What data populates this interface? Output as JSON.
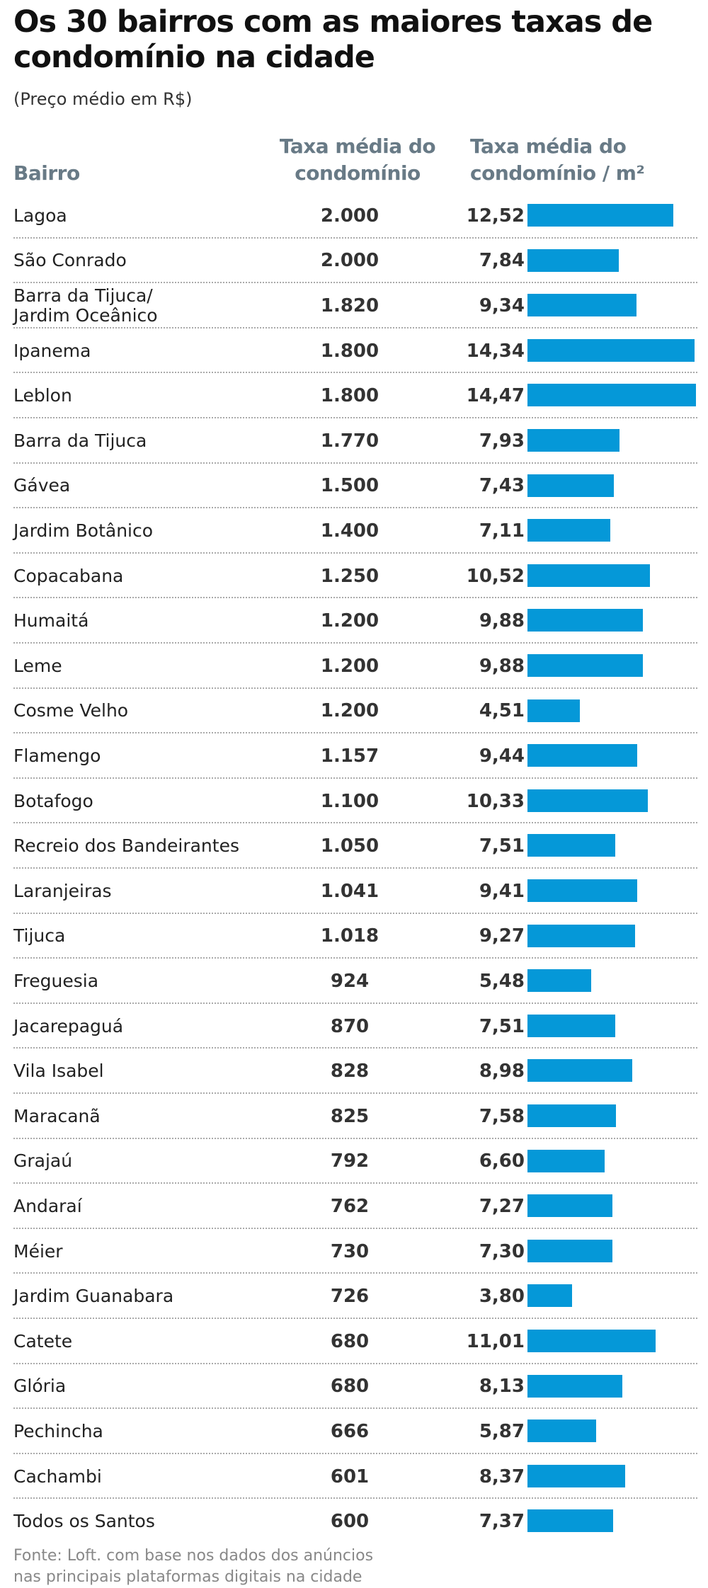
{
  "title": "Os 30 bairros com as maiores taxas de condomínio na cidade",
  "subtitle": "(Preço médio em R$)",
  "headers": {
    "bairro": "Bairro",
    "taxa": "Taxa média do condomínio",
    "taxa_m2": "Taxa média do condomínio / m²"
  },
  "source": "Fonte: Loft. com base nos dados dos anúncios nas principais plataformas digitais na cidade",
  "colors": {
    "bar": "#0598d8",
    "header": "#687a86"
  },
  "chart_data": {
    "type": "table",
    "bar_column": "Taxa média do condomínio / m²",
    "rows": [
      {
        "bairro": "Lagoa",
        "taxa": "2.000",
        "taxa_m2": "12,52",
        "m2": 12.52
      },
      {
        "bairro": "São Conrado",
        "taxa": "2.000",
        "taxa_m2": "7,84",
        "m2": 7.84
      },
      {
        "bairro": "Barra da Tijuca/ Jardim Oceânico",
        "taxa": "1.820",
        "taxa_m2": "9,34",
        "m2": 9.34
      },
      {
        "bairro": "Ipanema",
        "taxa": "1.800",
        "taxa_m2": "14,34",
        "m2": 14.34
      },
      {
        "bairro": "Leblon",
        "taxa": "1.800",
        "taxa_m2": "14,47",
        "m2": 14.47
      },
      {
        "bairro": "Barra da Tijuca",
        "taxa": "1.770",
        "taxa_m2": "7,93",
        "m2": 7.93
      },
      {
        "bairro": "Gávea",
        "taxa": "1.500",
        "taxa_m2": "7,43",
        "m2": 7.43
      },
      {
        "bairro": "Jardim Botânico",
        "taxa": "1.400",
        "taxa_m2": "7,11",
        "m2": 7.11
      },
      {
        "bairro": "Copacabana",
        "taxa": "1.250",
        "taxa_m2": "10,52",
        "m2": 10.52
      },
      {
        "bairro": "Humaitá",
        "taxa": "1.200",
        "taxa_m2": "9,88",
        "m2": 9.88
      },
      {
        "bairro": "Leme",
        "taxa": "1.200",
        "taxa_m2": "9,88",
        "m2": 9.88
      },
      {
        "bairro": "Cosme Velho",
        "taxa": "1.200",
        "taxa_m2": "4,51",
        "m2": 4.51
      },
      {
        "bairro": "Flamengo",
        "taxa": "1.157",
        "taxa_m2": "9,44",
        "m2": 9.44
      },
      {
        "bairro": "Botafogo",
        "taxa": "1.100",
        "taxa_m2": "10,33",
        "m2": 10.33
      },
      {
        "bairro": "Recreio dos Bandeirantes",
        "taxa": "1.050",
        "taxa_m2": "7,51",
        "m2": 7.51
      },
      {
        "bairro": "Laranjeiras",
        "taxa": "1.041",
        "taxa_m2": "9,41",
        "m2": 9.41
      },
      {
        "bairro": "Tijuca",
        "taxa": "1.018",
        "taxa_m2": "9,27",
        "m2": 9.27
      },
      {
        "bairro": "Freguesia",
        "taxa": "924",
        "taxa_m2": "5,48",
        "m2": 5.48
      },
      {
        "bairro": "Jacarepaguá",
        "taxa": "870",
        "taxa_m2": "7,51",
        "m2": 7.51
      },
      {
        "bairro": "Vila Isabel",
        "taxa": "828",
        "taxa_m2": "8,98",
        "m2": 8.98
      },
      {
        "bairro": "Maracanã",
        "taxa": "825",
        "taxa_m2": "7,58",
        "m2": 7.58
      },
      {
        "bairro": "Grajaú",
        "taxa": "792",
        "taxa_m2": "6,60",
        "m2": 6.6
      },
      {
        "bairro": "Andaraí",
        "taxa": "762",
        "taxa_m2": "7,27",
        "m2": 7.27
      },
      {
        "bairro": "Méier",
        "taxa": "730",
        "taxa_m2": "7,30",
        "m2": 7.3
      },
      {
        "bairro": "Jardim Guanabara",
        "taxa": "726",
        "taxa_m2": "3,80",
        "m2": 3.8
      },
      {
        "bairro": "Catete",
        "taxa": "680",
        "taxa_m2": "11,01",
        "m2": 11.01
      },
      {
        "bairro": "Glória",
        "taxa": "680",
        "taxa_m2": "8,13",
        "m2": 8.13
      },
      {
        "bairro": "Pechincha",
        "taxa": "666",
        "taxa_m2": "5,87",
        "m2": 5.87
      },
      {
        "bairro": "Cachambi",
        "taxa": "601",
        "taxa_m2": "8,37",
        "m2": 8.37
      },
      {
        "bairro": "Todos os Santos",
        "taxa": "600",
        "taxa_m2": "7,37",
        "m2": 7.37
      }
    ]
  }
}
